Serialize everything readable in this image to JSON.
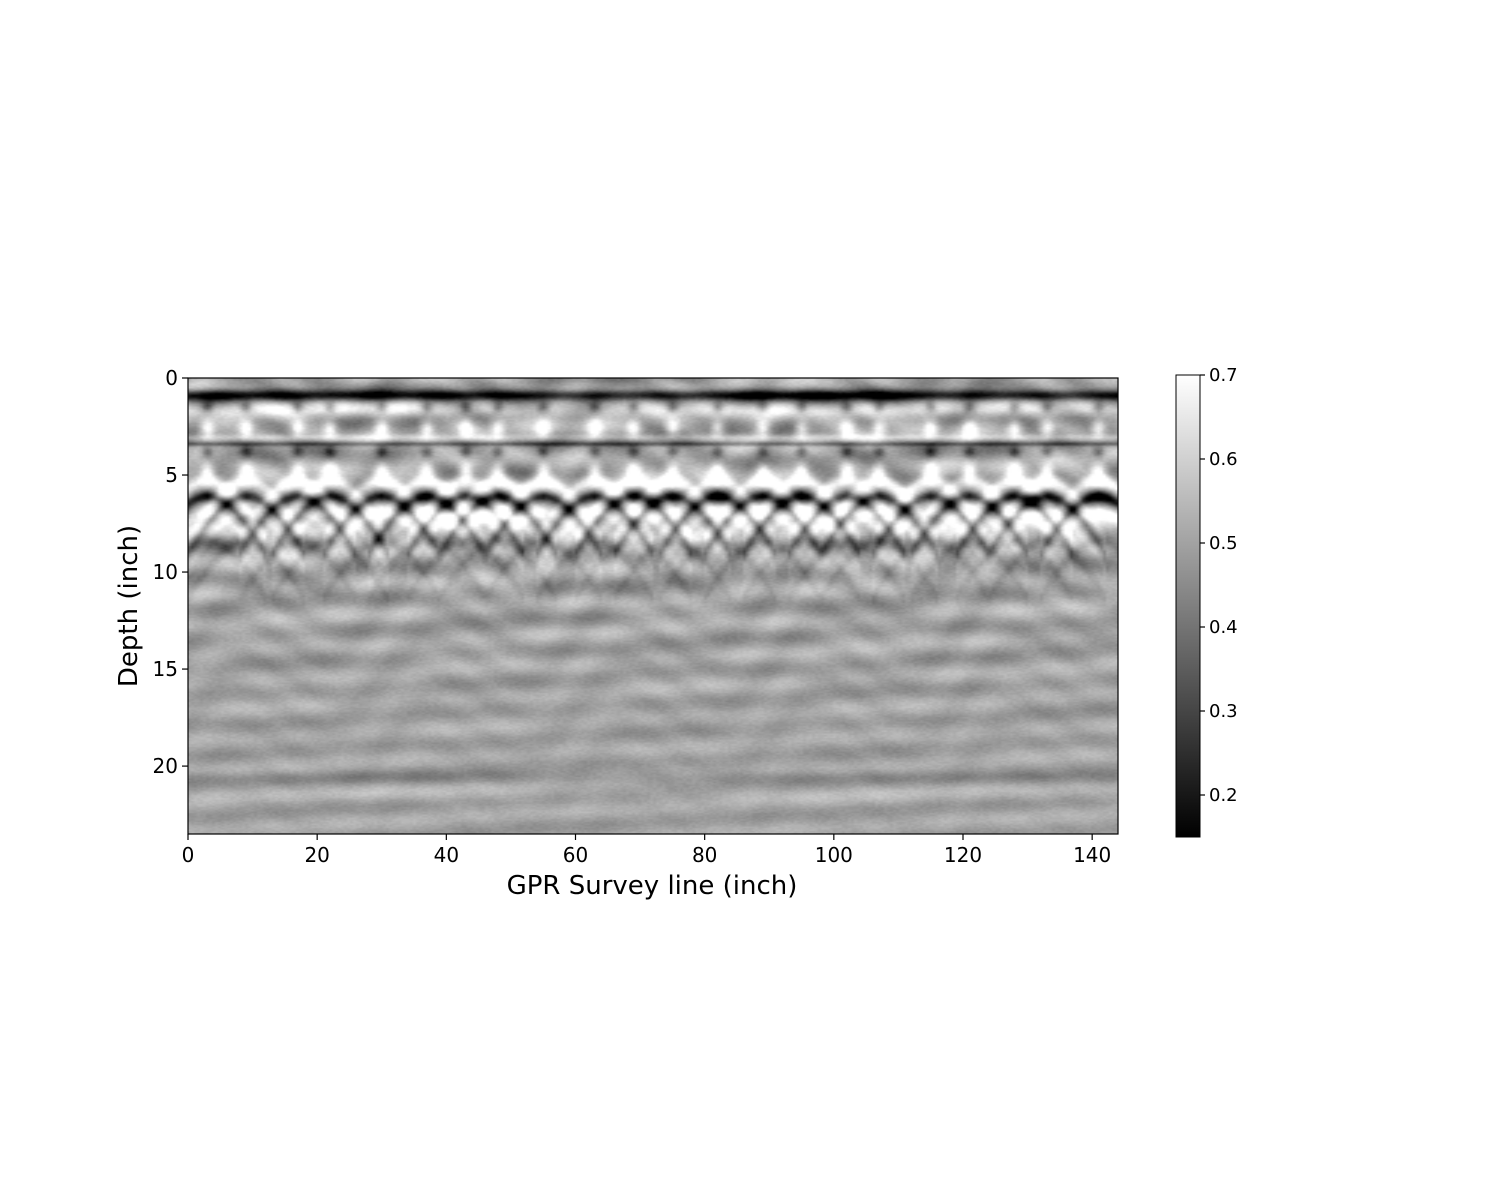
{
  "chart_data": {
    "type": "heatmap",
    "title": "",
    "xlabel": "GPR Survey line (inch)",
    "ylabel": "Depth (inch)",
    "xlim": [
      0,
      144
    ],
    "ylim": [
      23.5,
      0
    ],
    "x_ticks": [
      0,
      20,
      40,
      60,
      80,
      100,
      120,
      140
    ],
    "y_ticks": [
      0,
      5,
      10,
      15,
      20
    ],
    "colormap": "gray",
    "colorbar": {
      "range": [
        0.15,
        0.7
      ],
      "ticks": [
        0.2,
        0.3,
        0.4,
        0.5,
        0.6,
        0.7
      ]
    },
    "features": {
      "surface_reflection_depth": 0.9,
      "horizontal_band_depth": 3.4,
      "rebar_hyperbola_apex_depth": 6.1,
      "rebar_hyperbola_x_positions": [
        3,
        9,
        17,
        22,
        30,
        37,
        43,
        48,
        55,
        63,
        69,
        75,
        82,
        89,
        95,
        102,
        107,
        115,
        121,
        128,
        133,
        141
      ],
      "deep_band_depth": 20.6,
      "grid": false
    },
    "colors": {
      "background_gray": "#c3c3c3",
      "axis": "#000000"
    }
  }
}
